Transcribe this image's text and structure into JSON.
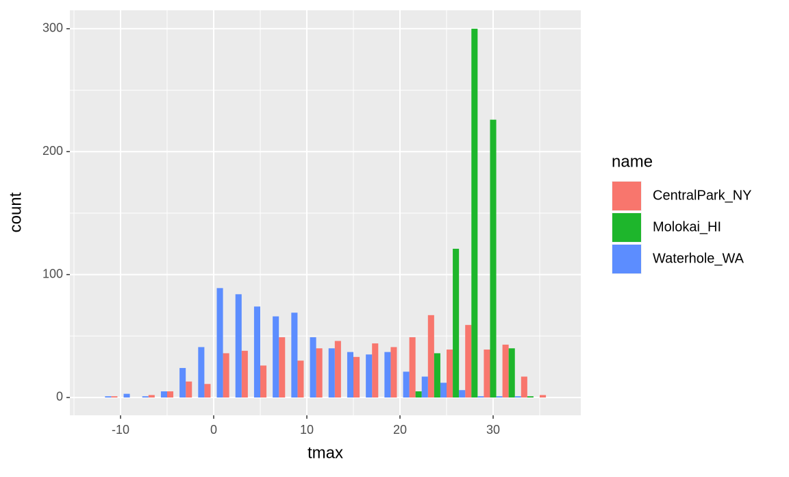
{
  "chart_data": {
    "type": "histogram",
    "x_label": "tmax",
    "y_label": "count",
    "legend_title": "name",
    "bins": [
      -13,
      -11,
      -9,
      -7,
      -5,
      -3,
      -1,
      1,
      3,
      5,
      7,
      9,
      11,
      13,
      15,
      17,
      19,
      21,
      23,
      25,
      27,
      29,
      31,
      33,
      35,
      37
    ],
    "series": [
      {
        "name": "CentralPark_NY",
        "color": "#f8766d",
        "values": [
          0,
          1,
          0,
          2,
          5,
          13,
          11,
          36,
          38,
          26,
          49,
          30,
          40,
          46,
          33,
          44,
          41,
          49,
          67,
          39,
          59,
          39,
          43,
          17,
          2
        ]
      },
      {
        "name": "Molokai_HI",
        "color": "#1eb62c",
        "values": [
          0,
          0,
          0,
          0,
          0,
          0,
          0,
          0,
          0,
          0,
          0,
          0,
          0,
          0,
          0,
          0,
          0,
          5,
          36,
          121,
          300,
          226,
          40,
          1,
          0
        ]
      },
      {
        "name": "Waterhole_WA",
        "color": "#5c8dff",
        "values": [
          1,
          3,
          1,
          5,
          24,
          41,
          89,
          84,
          74,
          66,
          69,
          49,
          40,
          37,
          35,
          37,
          21,
          17,
          12,
          6,
          1,
          1,
          1,
          0,
          0
        ]
      }
    ],
    "position": "dodge",
    "xlim": [
      -15.44,
      39.41
    ],
    "ylim": [
      -14.5,
      315
    ],
    "xticks": [
      -10,
      0,
      10,
      20,
      30
    ],
    "yticks": [
      0,
      100,
      200,
      300
    ],
    "xminorticks": [
      -15,
      -5,
      5,
      15,
      25,
      35
    ],
    "yminorticks": [
      50,
      150,
      250
    ],
    "grid": true,
    "legend": "right"
  }
}
